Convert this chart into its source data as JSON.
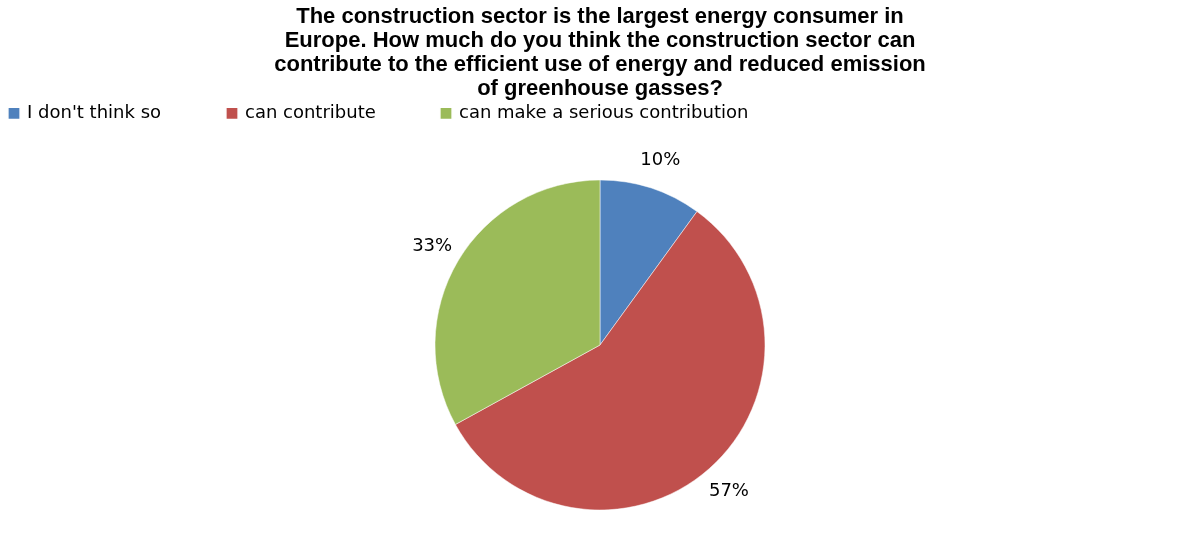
{
  "chart_data": {
    "type": "pie",
    "title": [
      "The construction sector is the largest energy consumer in",
      "Europe. How much do you think the construction sector can",
      "contribute to the efficient use of energy and reduced emission",
      "of greenhouse gasses?"
    ],
    "categories": [
      "I don't think so",
      "can contribute",
      "can make a serious contribution"
    ],
    "values": [
      10,
      57,
      33
    ],
    "colors": [
      "#4f81bd",
      "#c0504d",
      "#9bbb59"
    ],
    "value_labels": [
      "10%",
      "57%",
      "33%"
    ],
    "legend": "top"
  }
}
